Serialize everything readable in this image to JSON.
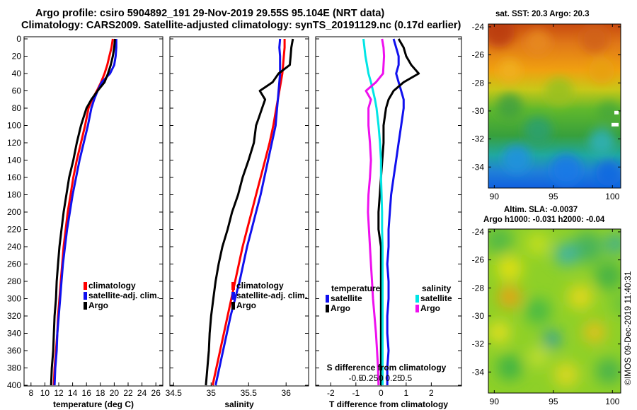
{
  "header": {
    "title_line1": "Argo profile: csiro 5904892_191 29-Nov-2019 29.55S 95.104E (NRT data)",
    "title_line2": "Climatology: CARS2009. Satellite-adjusted climatology: synTS_20191129.nc (0.17d earlier)"
  },
  "colors": {
    "climatology": "#ff0000",
    "satellite": "#1010ee",
    "argo": "#000000",
    "cyan": "#00e5e5",
    "magenta": "#ee10ee"
  },
  "chart_data": [
    {
      "type": "line",
      "id": "temperature",
      "xlabel": "temperature (deg C)",
      "xlim": [
        7,
        27
      ],
      "xticks": [
        8,
        10,
        12,
        14,
        16,
        18,
        20,
        22,
        24,
        26
      ],
      "ylim": [
        0,
        400
      ],
      "yticks": [
        0,
        20,
        40,
        60,
        80,
        100,
        120,
        140,
        160,
        180,
        200,
        220,
        240,
        260,
        280,
        300,
        320,
        340,
        360,
        380,
        400
      ],
      "depth": [
        0,
        10,
        20,
        30,
        40,
        50,
        60,
        70,
        80,
        100,
        120,
        140,
        160,
        180,
        200,
        220,
        240,
        260,
        280,
        300,
        320,
        340,
        360,
        380,
        400
      ],
      "series": [
        {
          "name": "climatology",
          "values": [
            19.8,
            19.6,
            19.3,
            19.0,
            18.6,
            18.1,
            17.5,
            16.8,
            16.3,
            15.8,
            15.2,
            14.6,
            14.1,
            13.7,
            13.3,
            13.0,
            12.7,
            12.5,
            12.3,
            12.1,
            11.9,
            11.8,
            11.6,
            11.4,
            11.3
          ]
        },
        {
          "name": "satellite-adj. clim.",
          "values": [
            20.3,
            20.3,
            20.2,
            20.0,
            19.4,
            18.2,
            17.6,
            17.1,
            16.7,
            16.2,
            15.6,
            15.0,
            14.5,
            14.0,
            13.6,
            13.2,
            12.9,
            12.6,
            12.4,
            12.2,
            12.0,
            11.8,
            11.7,
            11.5,
            11.4
          ]
        },
        {
          "name": "Argo",
          "values": [
            20.1,
            20.0,
            19.8,
            19.5,
            19.1,
            18.6,
            17.6,
            16.7,
            16.0,
            15.2,
            14.6,
            14.1,
            13.5,
            13.1,
            12.7,
            12.4,
            12.1,
            11.9,
            11.7,
            11.6,
            11.4,
            11.3,
            11.2,
            11.0,
            10.9
          ]
        }
      ],
      "legend": [
        "climatology",
        "satellite-adj. clim.",
        "Argo"
      ]
    },
    {
      "type": "line",
      "id": "salinity",
      "xlabel": "salinity",
      "xlim": [
        34.45,
        36.3
      ],
      "xticks": [
        34.5,
        35,
        35.5,
        36
      ],
      "xtick_labels": [
        "34.5",
        "35",
        "35.5",
        "36"
      ],
      "ylim": [
        0,
        400
      ],
      "depth": [
        0,
        10,
        20,
        30,
        40,
        50,
        60,
        70,
        80,
        90,
        100,
        120,
        140,
        160,
        180,
        200,
        220,
        240,
        260,
        280,
        300,
        320,
        340,
        360,
        380,
        400
      ],
      "series": [
        {
          "name": "climatology",
          "values": [
            35.98,
            35.98,
            35.97,
            35.96,
            35.95,
            35.93,
            35.91,
            35.89,
            35.87,
            35.85,
            35.83,
            35.78,
            35.72,
            35.66,
            35.6,
            35.54,
            35.48,
            35.42,
            35.37,
            35.32,
            35.27,
            35.22,
            35.17,
            35.12,
            35.07,
            35.02
          ]
        },
        {
          "name": "satellite-adj. clim.",
          "values": [
            35.92,
            35.91,
            35.92,
            35.92,
            35.92,
            35.91,
            35.9,
            35.89,
            35.88,
            35.87,
            35.86,
            35.81,
            35.76,
            35.71,
            35.66,
            35.6,
            35.54,
            35.48,
            35.43,
            35.38,
            35.32,
            35.26,
            35.21,
            35.16,
            35.11,
            35.06
          ]
        },
        {
          "name": "Argo",
          "values": [
            36.09,
            36.07,
            36.06,
            36.05,
            35.9,
            35.82,
            35.65,
            35.72,
            35.68,
            35.64,
            35.6,
            35.57,
            35.5,
            35.42,
            35.36,
            35.28,
            35.22,
            35.15,
            35.1,
            35.06,
            35.03,
            35.0,
            34.98,
            34.97,
            34.95,
            34.93
          ]
        }
      ],
      "legend": [
        "climatology",
        "satellite-adj. clim.",
        "Argo"
      ]
    },
    {
      "type": "line",
      "id": "difference",
      "xlabel": "T difference from climatology",
      "xlim": [
        -2.6,
        3.2
      ],
      "xticks": [
        -2,
        -1,
        0,
        1,
        2
      ],
      "top_label": "S difference from climatology",
      "top_xticks": [
        -0.5,
        -0.25,
        0,
        0.25,
        0.5
      ],
      "top_xtick_labels": [
        "-0.5",
        "-0.25",
        "0",
        "0.25",
        "0.5"
      ],
      "ylim": [
        0,
        400
      ],
      "depth": [
        0,
        10,
        20,
        30,
        40,
        50,
        60,
        70,
        80,
        100,
        120,
        140,
        160,
        180,
        200,
        220,
        240,
        260,
        280,
        300,
        320,
        340,
        360,
        380,
        400
      ],
      "series": [
        {
          "name": "temperature satellite",
          "values": [
            0.5,
            0.6,
            0.7,
            0.7,
            0.6,
            0.7,
            0.8,
            0.9,
            0.9,
            0.8,
            0.7,
            0.6,
            0.5,
            0.4,
            0.35,
            0.3,
            0.3,
            0.25,
            0.3,
            0.3,
            0.25,
            0.25,
            0.3,
            0.25,
            0.25
          ]
        },
        {
          "name": "temperature Argo",
          "values": [
            0.7,
            0.9,
            1.0,
            1.2,
            1.5,
            0.9,
            0.5,
            0.3,
            0.2,
            0.1,
            0.1,
            0.05,
            0.0,
            -0.05,
            -0.1,
            -0.1,
            0.0,
            0.0,
            0.0,
            0.0,
            0.0,
            0.0,
            0.0,
            0.0,
            0.0
          ]
        },
        {
          "name": "salinity satellite",
          "values": [
            -0.35,
            -0.33,
            -0.31,
            -0.28,
            -0.25,
            -0.2,
            -0.16,
            -0.12,
            -0.09,
            -0.05,
            -0.02,
            0.0,
            0.0,
            0.01,
            0.02,
            0.02,
            0.03,
            0.03,
            0.03,
            0.03,
            0.03,
            0.03,
            0.03,
            0.03,
            0.03
          ]
        },
        {
          "name": "salinity Argo",
          "values": [
            0.02,
            0.05,
            0.06,
            0.05,
            0.04,
            -0.1,
            -0.3,
            -0.2,
            -0.25,
            -0.25,
            -0.22,
            -0.2,
            -0.22,
            -0.25,
            -0.26,
            -0.24,
            -0.22,
            -0.2,
            -0.18,
            -0.16,
            -0.13,
            -0.1,
            -0.08,
            -0.06,
            -0.05
          ]
        }
      ],
      "legend": {
        "temperature_heading": "temperature",
        "salinity_heading": "salinity",
        "satellite": "satellite",
        "argo": "Argo"
      }
    },
    {
      "type": "heatmap",
      "id": "sst_map",
      "title": "sat. SST: 20.3  Argo: 20.3",
      "xlim": [
        89.5,
        100.7
      ],
      "xticks": [
        90,
        95,
        100
      ],
      "ylim": [
        -35.5,
        -23.8
      ],
      "yticks": [
        -34,
        -32,
        -30,
        -28,
        -26,
        -24
      ],
      "marker": {
        "lon": 100.4,
        "lat": -30.6
      }
    },
    {
      "type": "heatmap",
      "id": "sla_map",
      "title": "Altim. SLA: -0.0037",
      "subtitle": "Argo h1000: -0.031 h2000: -0.04",
      "xlim": [
        89.5,
        100.7
      ],
      "xticks": [
        90,
        95,
        100
      ],
      "ylim": [
        -35.5,
        -23.8
      ],
      "yticks": [
        -34,
        -32,
        -30,
        -28,
        -26,
        -24
      ]
    }
  ],
  "footer": {
    "timestamp": "©IMOS 09-Dec-2019 11:40:31"
  }
}
